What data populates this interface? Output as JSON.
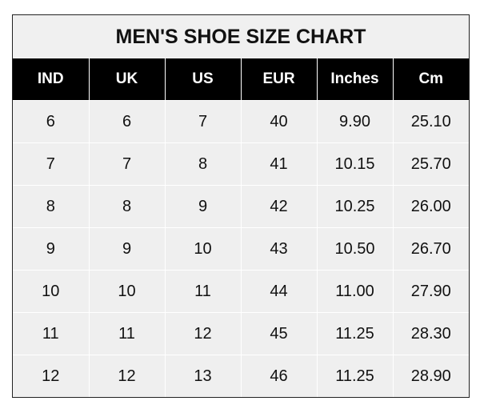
{
  "title": "MEN'S SHOE SIZE CHART",
  "columns": [
    "IND",
    "UK",
    "US",
    "EUR",
    "Inches",
    "Cm"
  ],
  "rows": [
    [
      "6",
      "6",
      "7",
      "40",
      "9.90",
      "25.10"
    ],
    [
      "7",
      "7",
      "8",
      "41",
      "10.15",
      "25.70"
    ],
    [
      "8",
      "8",
      "9",
      "42",
      "10.25",
      "26.00"
    ],
    [
      "9",
      "9",
      "10",
      "43",
      "10.50",
      "26.70"
    ],
    [
      "10",
      "10",
      "11",
      "44",
      "11.00",
      "27.90"
    ],
    [
      "11",
      "11",
      "12",
      "45",
      "11.25",
      "28.30"
    ],
    [
      "12",
      "12",
      "13",
      "46",
      "11.25",
      "28.90"
    ]
  ],
  "colors": {
    "header_bg": "#000000",
    "cell_bg": "#efefef",
    "grid": "#ffffff"
  }
}
